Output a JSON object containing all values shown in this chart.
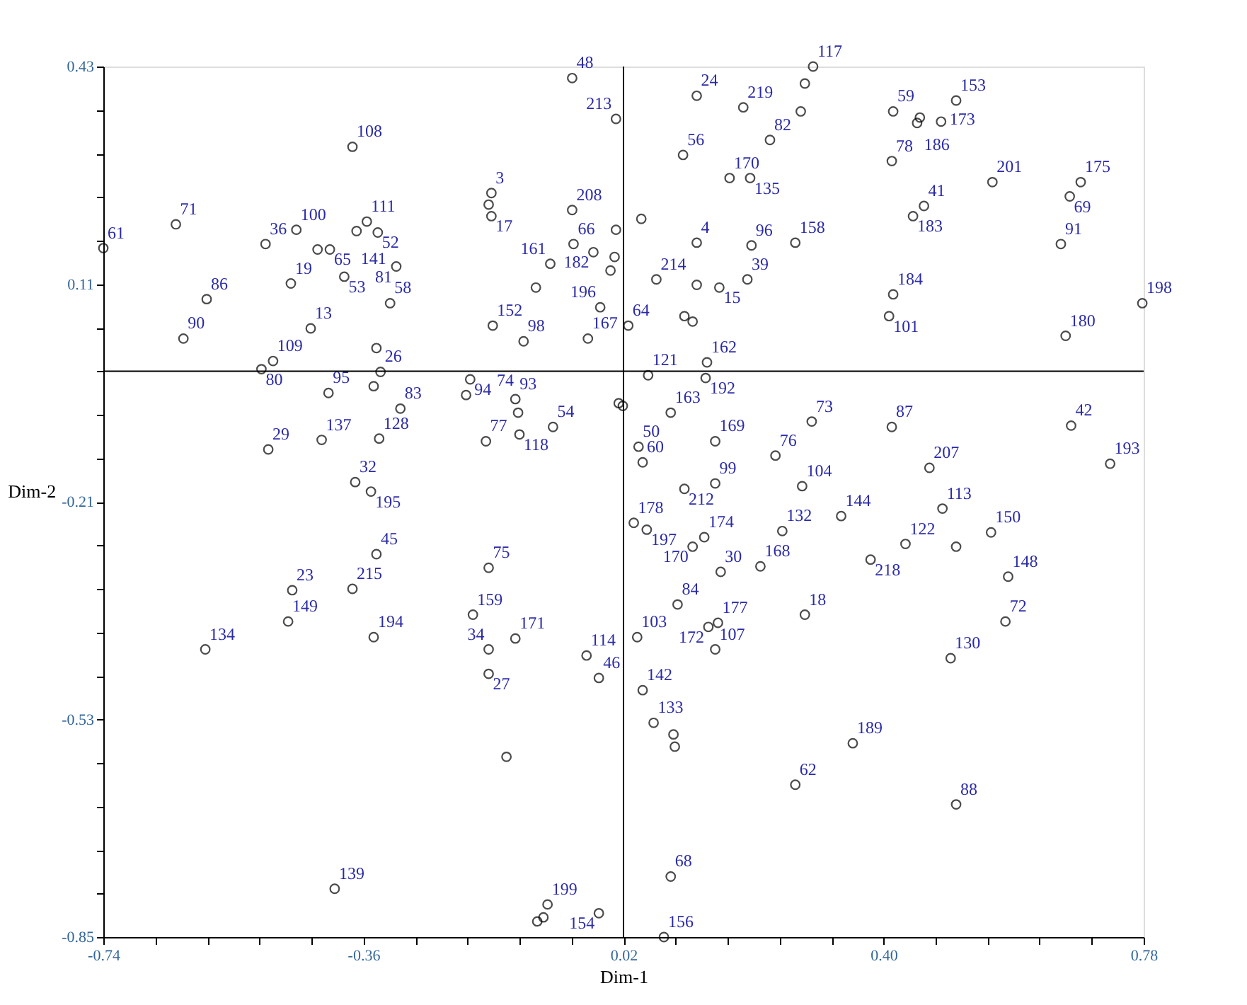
{
  "chart_data": {
    "type": "scatter",
    "xlabel": "Dim-1",
    "ylabel": "Dim-2",
    "xlim": [
      -0.74,
      0.78
    ],
    "ylim": [
      -0.85,
      0.43
    ],
    "xticks": [
      -0.74,
      {
        "value": -0.664,
        "label": null
      },
      {
        "value": -0.588,
        "label": null
      },
      {
        "value": -0.512,
        "label": null
      },
      {
        "value": -0.436,
        "label": null
      },
      -0.36,
      {
        "value": -0.284,
        "label": null
      },
      {
        "value": -0.208,
        "label": null
      },
      {
        "value": -0.132,
        "label": null
      },
      {
        "value": -0.056,
        "label": null
      },
      0.02,
      {
        "value": 0.096,
        "label": null
      },
      {
        "value": 0.172,
        "label": null
      },
      {
        "value": 0.248,
        "label": null
      },
      {
        "value": 0.324,
        "label": null
      },
      {
        "value": 0.4,
        "label": "0.40"
      },
      {
        "value": 0.476,
        "label": null
      },
      {
        "value": 0.552,
        "label": null
      },
      {
        "value": 0.628,
        "label": null
      },
      {
        "value": 0.704,
        "label": null
      },
      0.78
    ],
    "yticks": [
      -0.85,
      {
        "value": -0.786,
        "label": null
      },
      {
        "value": -0.722,
        "label": null
      },
      {
        "value": -0.658,
        "label": null
      },
      {
        "value": -0.594,
        "label": null
      },
      -0.53,
      {
        "value": -0.466,
        "label": null
      },
      {
        "value": -0.402,
        "label": null
      },
      {
        "value": -0.338,
        "label": null
      },
      {
        "value": -0.274,
        "label": null
      },
      -0.21,
      {
        "value": -0.146,
        "label": null
      },
      {
        "value": -0.082,
        "label": null
      },
      {
        "value": -0.018,
        "label": null
      },
      {
        "value": 0.046,
        "label": null
      },
      0.11,
      {
        "value": 0.174,
        "label": null
      },
      {
        "value": 0.238,
        "label": null
      },
      {
        "value": 0.302,
        "label": null
      },
      {
        "value": 0.366,
        "label": null
      },
      0.43
    ],
    "grid": false,
    "marker": "circle",
    "ref_lines": [
      {
        "axis": "x",
        "value": 0.02,
        "color": "#000000"
      },
      {
        "axis": "y",
        "value": -0.018,
        "color": "#000000"
      }
    ],
    "series": [
      {
        "color": "#000000",
        "x": [
          -0.74,
          -0.634,
          -0.503,
          -0.458,
          -0.623,
          -0.589,
          -0.376,
          -0.355,
          -0.339,
          -0.37,
          -0.409,
          -0.427,
          -0.466,
          -0.321,
          -0.312,
          -0.388,
          -0.437,
          -0.509,
          -0.492,
          -0.341,
          -0.335,
          -0.411,
          -0.345,
          -0.306,
          -0.337,
          -0.421,
          -0.499,
          -0.372,
          -0.349,
          -0.341,
          -0.464,
          -0.376,
          -0.47,
          -0.345,
          -0.591,
          -0.402,
          -0.055,
          0.009,
          0.127,
          0.195,
          0.107,
          0.175,
          0.205,
          0.234,
          -0.173,
          -0.173,
          -0.177,
          -0.055,
          -0.024,
          -0.053,
          -0.087,
          -0.108,
          -0.171,
          -0.126,
          -0.014,
          -0.032,
          0.027,
          0.001,
          0.007,
          0.009,
          0.046,
          0.068,
          0.127,
          0.127,
          0.16,
          0.207,
          0.201,
          0.109,
          0.121,
          0.142,
          0.14,
          0.056,
          0.013,
          0.019,
          0.089,
          -0.204,
          -0.21,
          -0.138,
          -0.134,
          -0.181,
          -0.132,
          -0.083,
          0.042,
          0.048,
          0.154,
          0.109,
          0.154,
          0.242,
          0.297,
          0.285,
          0.279,
          0.414,
          0.453,
          0.449,
          0.484,
          0.506,
          0.412,
          0.459,
          0.443,
          0.559,
          0.688,
          0.672,
          0.659,
          0.271,
          0.414,
          0.408,
          0.666,
          0.778,
          0.295,
          0.412,
          0.674,
          0.467,
          0.731,
          0.281,
          0.486,
          0.338,
          0.432,
          0.381,
          0.506,
          0.557,
          0.582,
          0.578,
          0.285,
          0.498,
          0.355,
          0.271,
          0.506,
          0.252,
          0.035,
          0.054,
          0.138,
          0.121,
          0.162,
          0.22,
          -0.177,
          -0.2,
          -0.138,
          -0.177,
          -0.177,
          -0.034,
          -0.016,
          0.04,
          0.099,
          0.158,
          0.144,
          0.154,
          0.048,
          0.064,
          0.093,
          0.095,
          -0.151,
          -0.091,
          -0.097,
          -0.106,
          -0.016,
          0.089,
          0.079
        ],
        "values": [
          0.163,
          0.198,
          0.169,
          0.19,
          0.03,
          0.088,
          0.312,
          0.202,
          0.186,
          0.188,
          0.161,
          0.161,
          0.111,
          0.082,
          0.136,
          0.121,
          0.045,
          -0.015,
          -0.003,
          0.016,
          -0.019,
          -0.05,
          -0.04,
          -0.073,
          -0.117,
          -0.119,
          -0.133,
          -0.181,
          -0.195,
          -0.287,
          -0.34,
          -0.338,
          -0.386,
          -0.409,
          -0.427,
          -0.779,
          0.413,
          0.353,
          0.387,
          0.37,
          0.3,
          0.266,
          0.266,
          0.322,
          0.244,
          0.21,
          0.227,
          0.219,
          0.157,
          0.169,
          0.14,
          0.105,
          0.049,
          0.026,
          0.076,
          0.03,
          0.049,
          0.13,
          0.15,
          0.19,
          0.206,
          0.117,
          0.171,
          0.109,
          0.105,
          0.167,
          0.117,
          0.063,
          0.055,
          -0.005,
          -0.028,
          -0.024,
          -0.065,
          -0.069,
          -0.079,
          -0.03,
          -0.053,
          -0.059,
          -0.079,
          -0.121,
          -0.111,
          -0.1,
          -0.129,
          -0.152,
          -0.121,
          -0.191,
          -0.183,
          -0.142,
          0.43,
          0.405,
          0.364,
          0.364,
          0.355,
          0.347,
          0.349,
          0.38,
          0.291,
          0.225,
          0.21,
          0.26,
          0.26,
          0.239,
          0.169,
          0.171,
          0.095,
          0.063,
          0.034,
          0.082,
          -0.092,
          -0.1,
          -0.098,
          -0.16,
          -0.154,
          -0.187,
          -0.22,
          -0.231,
          -0.272,
          -0.295,
          -0.276,
          -0.255,
          -0.32,
          -0.386,
          -0.376,
          -0.44,
          -0.565,
          -0.626,
          -0.655,
          -0.253,
          -0.241,
          -0.251,
          -0.262,
          -0.276,
          -0.313,
          -0.305,
          -0.307,
          -0.376,
          -0.411,
          -0.427,
          -0.463,
          -0.436,
          -0.469,
          -0.409,
          -0.361,
          -0.388,
          -0.394,
          -0.427,
          -0.487,
          -0.535,
          -0.552,
          -0.57,
          -0.585,
          -0.802,
          -0.821,
          -0.827,
          -0.815,
          -0.761,
          -0.85
        ]
      }
    ],
    "annotations": [
      {
        "text": "61",
        "x": -0.74,
        "y": 0.163
      },
      {
        "text": "71",
        "x": -0.634,
        "y": 0.198
      },
      {
        "text": "36",
        "x": -0.503,
        "y": 0.169
      },
      {
        "text": "100",
        "x": -0.458,
        "y": 0.19
      },
      {
        "text": "90",
        "x": -0.623,
        "y": 0.03
      },
      {
        "text": "86",
        "x": -0.589,
        "y": 0.088
      },
      {
        "text": "108",
        "x": -0.376,
        "y": 0.312
      },
      {
        "text": "111",
        "x": -0.355,
        "y": 0.202
      },
      {
        "text": "52",
        "x": -0.339,
        "y": 0.186
      },
      {
        "text": "141",
        "x": -0.37,
        "y": 0.188
      },
      {
        "text": "65",
        "x": -0.409,
        "y": 0.161
      },
      {
        "text": "19",
        "x": -0.466,
        "y": 0.111
      },
      {
        "text": "58",
        "x": -0.321,
        "y": 0.082
      },
      {
        "text": "81",
        "x": -0.312,
        "y": 0.136
      },
      {
        "text": "53",
        "x": -0.388,
        "y": 0.121
      },
      {
        "text": "13",
        "x": -0.437,
        "y": 0.045
      },
      {
        "text": "80",
        "x": -0.509,
        "y": -0.015
      },
      {
        "text": "109",
        "x": -0.492,
        "y": -0.003
      },
      {
        "text": "26",
        "x": -0.335,
        "y": -0.019
      },
      {
        "text": "95",
        "x": -0.411,
        "y": -0.05
      },
      {
        "text": "83",
        "x": -0.306,
        "y": -0.073
      },
      {
        "text": "128",
        "x": -0.337,
        "y": -0.117
      },
      {
        "text": "137",
        "x": -0.421,
        "y": -0.119
      },
      {
        "text": "29",
        "x": -0.499,
        "y": -0.133
      },
      {
        "text": "32",
        "x": -0.372,
        "y": -0.181
      },
      {
        "text": "195",
        "x": -0.349,
        "y": -0.195
      },
      {
        "text": "45",
        "x": -0.341,
        "y": -0.287
      },
      {
        "text": "23",
        "x": -0.464,
        "y": -0.34
      },
      {
        "text": "215",
        "x": -0.376,
        "y": -0.338
      },
      {
        "text": "149",
        "x": -0.47,
        "y": -0.386
      },
      {
        "text": "194",
        "x": -0.345,
        "y": -0.409
      },
      {
        "text": "134",
        "x": -0.591,
        "y": -0.427
      },
      {
        "text": "139",
        "x": -0.402,
        "y": -0.779
      },
      {
        "text": "48",
        "x": -0.055,
        "y": 0.413
      },
      {
        "text": "213",
        "x": 0.009,
        "y": 0.353
      },
      {
        "text": "24",
        "x": 0.127,
        "y": 0.387
      },
      {
        "text": "219",
        "x": 0.195,
        "y": 0.37
      },
      {
        "text": "56",
        "x": 0.107,
        "y": 0.3
      },
      {
        "text": "170",
        "x": 0.175,
        "y": 0.266
      },
      {
        "text": "135",
        "x": 0.205,
        "y": 0.266
      },
      {
        "text": "82",
        "x": 0.234,
        "y": 0.322
      },
      {
        "text": "3",
        "x": -0.173,
        "y": 0.244
      },
      {
        "text": "17",
        "x": -0.173,
        "y": 0.21
      },
      {
        "text": "208",
        "x": -0.055,
        "y": 0.219
      },
      {
        "text": "182",
        "x": -0.024,
        "y": 0.157
      },
      {
        "text": "66",
        "x": -0.053,
        "y": 0.169
      },
      {
        "text": "161",
        "x": -0.087,
        "y": 0.14
      },
      {
        "text": "152",
        "x": -0.171,
        "y": 0.049
      },
      {
        "text": "98",
        "x": -0.126,
        "y": 0.026
      },
      {
        "text": "196",
        "x": -0.014,
        "y": 0.076
      },
      {
        "text": "167",
        "x": -0.032,
        "y": 0.03
      },
      {
        "text": "64",
        "x": 0.027,
        "y": 0.049
      },
      {
        "text": "214",
        "x": 0.068,
        "y": 0.117
      },
      {
        "text": "4",
        "x": 0.127,
        "y": 0.171
      },
      {
        "text": "15",
        "x": 0.16,
        "y": 0.105
      },
      {
        "text": "96",
        "x": 0.207,
        "y": 0.167
      },
      {
        "text": "39",
        "x": 0.201,
        "y": 0.117
      },
      {
        "text": "162",
        "x": 0.142,
        "y": -0.005
      },
      {
        "text": "192",
        "x": 0.14,
        "y": -0.028
      },
      {
        "text": "121",
        "x": 0.056,
        "y": -0.024
      },
      {
        "text": "163",
        "x": 0.089,
        "y": -0.079
      },
      {
        "text": "94",
        "x": -0.204,
        "y": -0.03
      },
      {
        "text": "93",
        "x": -0.138,
        "y": -0.059
      },
      {
        "text": "74",
        "x": -0.134,
        "y": -0.079
      },
      {
        "text": "77",
        "x": -0.181,
        "y": -0.121
      },
      {
        "text": "118",
        "x": -0.132,
        "y": -0.111
      },
      {
        "text": "54",
        "x": -0.083,
        "y": -0.1
      },
      {
        "text": "50",
        "x": 0.042,
        "y": -0.129
      },
      {
        "text": "60",
        "x": 0.048,
        "y": -0.152
      },
      {
        "text": "169",
        "x": 0.154,
        "y": -0.121
      },
      {
        "text": "212",
        "x": 0.109,
        "y": -0.191
      },
      {
        "text": "99",
        "x": 0.154,
        "y": -0.183
      },
      {
        "text": "76",
        "x": 0.242,
        "y": -0.142
      },
      {
        "text": "117",
        "x": 0.297,
        "y": 0.43
      },
      {
        "text": "59",
        "x": 0.414,
        "y": 0.364
      },
      {
        "text": "186",
        "x": 0.453,
        "y": 0.355
      },
      {
        "text": "173",
        "x": 0.484,
        "y": 0.349
      },
      {
        "text": "153",
        "x": 0.506,
        "y": 0.38
      },
      {
        "text": "78",
        "x": 0.412,
        "y": 0.291
      },
      {
        "text": "41",
        "x": 0.459,
        "y": 0.225
      },
      {
        "text": "183",
        "x": 0.443,
        "y": 0.21
      },
      {
        "text": "201",
        "x": 0.559,
        "y": 0.26
      },
      {
        "text": "175",
        "x": 0.688,
        "y": 0.26
      },
      {
        "text": "69",
        "x": 0.672,
        "y": 0.239
      },
      {
        "text": "91",
        "x": 0.659,
        "y": 0.169
      },
      {
        "text": "158",
        "x": 0.271,
        "y": 0.171
      },
      {
        "text": "184",
        "x": 0.414,
        "y": 0.095
      },
      {
        "text": "101",
        "x": 0.408,
        "y": 0.063
      },
      {
        "text": "180",
        "x": 0.666,
        "y": 0.034
      },
      {
        "text": "198",
        "x": 0.778,
        "y": 0.082
      },
      {
        "text": "73",
        "x": 0.295,
        "y": -0.092
      },
      {
        "text": "87",
        "x": 0.412,
        "y": -0.1
      },
      {
        "text": "42",
        "x": 0.674,
        "y": -0.098
      },
      {
        "text": "207",
        "x": 0.467,
        "y": -0.16
      },
      {
        "text": "193",
        "x": 0.731,
        "y": -0.154
      },
      {
        "text": "104",
        "x": 0.281,
        "y": -0.187
      },
      {
        "text": "113",
        "x": 0.486,
        "y": -0.22
      },
      {
        "text": "144",
        "x": 0.338,
        "y": -0.231
      },
      {
        "text": "122",
        "x": 0.432,
        "y": -0.272
      },
      {
        "text": "218",
        "x": 0.381,
        "y": -0.295
      },
      {
        "text": "150",
        "x": 0.557,
        "y": -0.255
      },
      {
        "text": "148",
        "x": 0.582,
        "y": -0.32
      },
      {
        "text": "72",
        "x": 0.578,
        "y": -0.386
      },
      {
        "text": "18",
        "x": 0.285,
        "y": -0.376
      },
      {
        "text": "130",
        "x": 0.498,
        "y": -0.44
      },
      {
        "text": "189",
        "x": 0.355,
        "y": -0.565
      },
      {
        "text": "62",
        "x": 0.271,
        "y": -0.626
      },
      {
        "text": "88",
        "x": 0.506,
        "y": -0.655
      },
      {
        "text": "132",
        "x": 0.252,
        "y": -0.253
      },
      {
        "text": "178",
        "x": 0.035,
        "y": -0.241
      },
      {
        "text": "197",
        "x": 0.054,
        "y": -0.251
      },
      {
        "text": "174",
        "x": 0.138,
        "y": -0.262
      },
      {
        "text": "170",
        "x": 0.121,
        "y": -0.276
      },
      {
        "text": "30",
        "x": 0.162,
        "y": -0.313
      },
      {
        "text": "168",
        "x": 0.22,
        "y": -0.305
      },
      {
        "text": "75",
        "x": -0.177,
        "y": -0.307
      },
      {
        "text": "159",
        "x": -0.2,
        "y": -0.376
      },
      {
        "text": "171",
        "x": -0.138,
        "y": -0.411
      },
      {
        "text": "34",
        "x": -0.177,
        "y": -0.427
      },
      {
        "text": "27",
        "x": -0.177,
        "y": -0.463
      },
      {
        "text": "114",
        "x": -0.034,
        "y": -0.436
      },
      {
        "text": "46",
        "x": -0.016,
        "y": -0.469
      },
      {
        "text": "103",
        "x": 0.04,
        "y": -0.409
      },
      {
        "text": "84",
        "x": 0.099,
        "y": -0.361
      },
      {
        "text": "177",
        "x": 0.158,
        "y": -0.388
      },
      {
        "text": "172",
        "x": 0.144,
        "y": -0.394
      },
      {
        "text": "107",
        "x": 0.154,
        "y": -0.427
      },
      {
        "text": "142",
        "x": 0.048,
        "y": -0.487
      },
      {
        "text": "133",
        "x": 0.064,
        "y": -0.535
      },
      {
        "text": "199",
        "x": -0.091,
        "y": -0.802
      },
      {
        "text": "154",
        "x": -0.016,
        "y": -0.815
      },
      {
        "text": "68",
        "x": 0.089,
        "y": -0.761
      },
      {
        "text": "156",
        "x": 0.079,
        "y": -0.85
      }
    ]
  }
}
